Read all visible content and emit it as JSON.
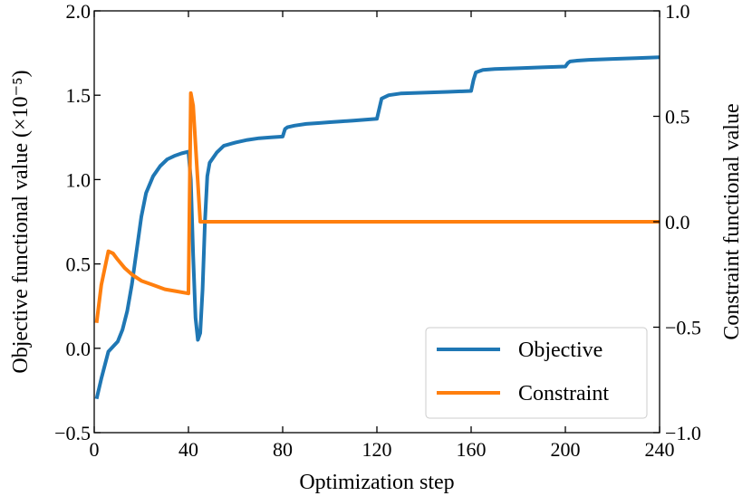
{
  "chart_data": {
    "type": "line",
    "title": "",
    "xlabel": "Optimization step",
    "ylabel_left": "Objective functional value (×10⁻⁵)",
    "ylabel_right": "Constraint functional value",
    "xlim": [
      0,
      240
    ],
    "ylim_left": [
      -0.5,
      2.0
    ],
    "ylim_right": [
      -1.0,
      1.0
    ],
    "x_ticks": [
      0,
      40,
      80,
      120,
      160,
      200,
      240
    ],
    "x_tick_labels": [
      "0",
      "40",
      "80",
      "120",
      "160",
      "200",
      "240"
    ],
    "y_left_ticks": [
      -0.5,
      0.0,
      0.5,
      1.0,
      1.5,
      2.0
    ],
    "y_left_tick_labels": [
      "−0.5",
      "0.0",
      "0.5",
      "1.0",
      "1.5",
      "2.0"
    ],
    "y_right_ticks": [
      -1.0,
      -0.5,
      0.0,
      0.5,
      1.0
    ],
    "y_right_tick_labels": [
      "−1.0",
      "−0.5",
      "0.0",
      "0.5",
      "1.0"
    ],
    "grid": false,
    "legend_position": "bottom-right",
    "series": [
      {
        "name": "Objective",
        "axis": "left",
        "color": "#1f77b4",
        "x": [
          1,
          3,
          6,
          8,
          10,
          12,
          14,
          16,
          18,
          20,
          22,
          25,
          28,
          31,
          34,
          37,
          40,
          41,
          42,
          43,
          44,
          45,
          46,
          47,
          48,
          49,
          52,
          55,
          60,
          65,
          70,
          75,
          80,
          81,
          82,
          85,
          90,
          95,
          100,
          105,
          110,
          115,
          120,
          121,
          122,
          125,
          130,
          140,
          150,
          160,
          161,
          162,
          165,
          170,
          180,
          190,
          200,
          201,
          202,
          205,
          210,
          220,
          230,
          240
        ],
        "values": [
          -0.3,
          -0.18,
          -0.02,
          0.01,
          0.04,
          0.11,
          0.22,
          0.38,
          0.58,
          0.78,
          0.92,
          1.02,
          1.08,
          1.12,
          1.14,
          1.155,
          1.165,
          1.0,
          0.55,
          0.18,
          0.05,
          0.09,
          0.35,
          0.75,
          1.02,
          1.1,
          1.16,
          1.2,
          1.22,
          1.235,
          1.245,
          1.25,
          1.255,
          1.3,
          1.31,
          1.32,
          1.33,
          1.335,
          1.34,
          1.345,
          1.35,
          1.355,
          1.36,
          1.42,
          1.48,
          1.5,
          1.51,
          1.515,
          1.52,
          1.525,
          1.59,
          1.635,
          1.65,
          1.655,
          1.66,
          1.665,
          1.67,
          1.69,
          1.7,
          1.705,
          1.71,
          1.715,
          1.72,
          1.725
        ]
      },
      {
        "name": "Constraint",
        "axis": "right",
        "color": "#ff7f0e",
        "x": [
          1,
          3,
          6,
          8,
          10,
          13,
          16,
          20,
          25,
          30,
          35,
          40,
          41,
          42,
          45,
          47,
          60,
          80,
          120,
          160,
          200,
          240
        ],
        "values": [
          -0.48,
          -0.3,
          -0.14,
          -0.15,
          -0.18,
          -0.22,
          -0.25,
          -0.28,
          -0.3,
          -0.32,
          -0.33,
          -0.34,
          0.61,
          0.55,
          0.0,
          0.0,
          0.0,
          0.0,
          0.0,
          0.0,
          0.0,
          0.0
        ]
      }
    ]
  }
}
